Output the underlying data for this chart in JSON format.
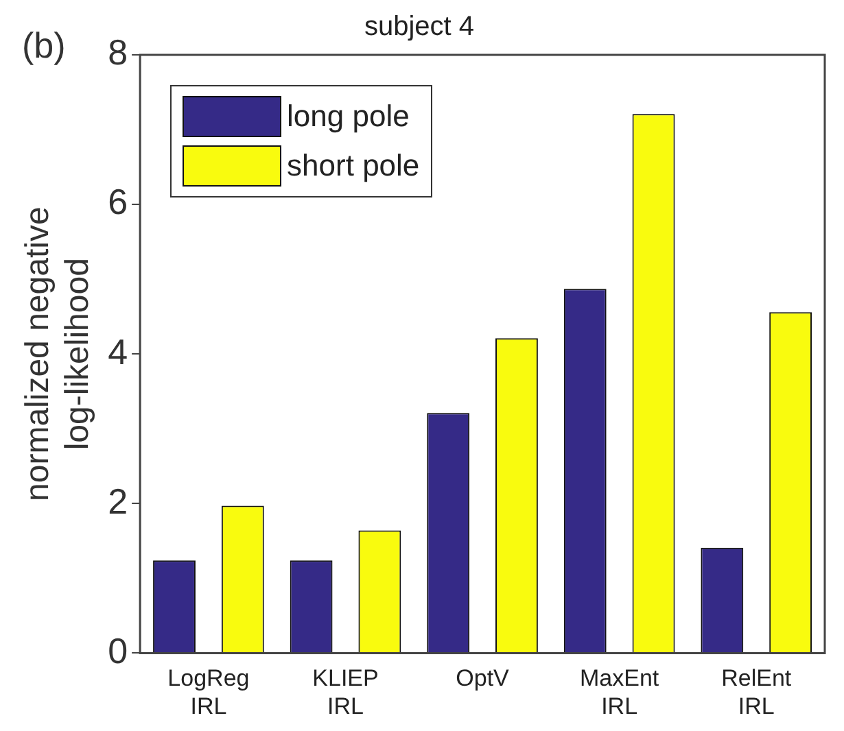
{
  "chart_data": {
    "type": "bar",
    "title": "subject 4",
    "ylabel": "normalized negative\nlog-likelihood",
    "annotations": [
      "(b)"
    ],
    "categories": [
      "LogReg\nIRL",
      "KLIEP\nIRL",
      "OptV",
      "MaxEnt\nIRL",
      "RelEnt\nIRL"
    ],
    "series": [
      {
        "name": "long pole",
        "color": "#352a87",
        "values": [
          1.24,
          1.24,
          3.21,
          4.87,
          1.41
        ]
      },
      {
        "name": "short pole",
        "color": "#f9fb0e",
        "values": [
          1.97,
          1.64,
          4.21,
          7.21,
          4.56
        ]
      }
    ],
    "ylim": [
      0,
      8
    ],
    "yticks": [
      0,
      2,
      4,
      6,
      8
    ],
    "grid": false,
    "legend": "top left"
  }
}
